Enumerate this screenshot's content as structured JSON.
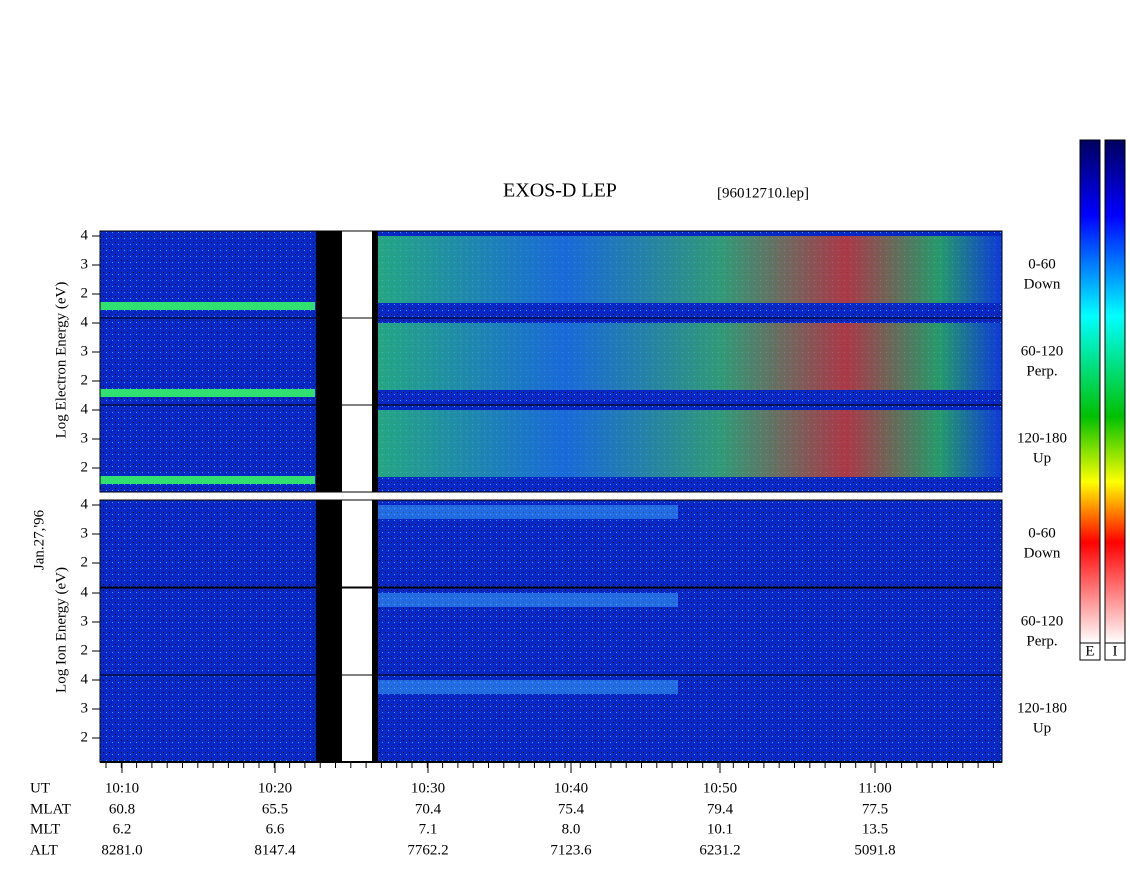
{
  "title": "EXOS-D LEP",
  "file": "[96012710.lep]",
  "date": "Jan.27,'96",
  "electron_ylabel": "Log  Electron  Energy (eV)",
  "ion_ylabel": "Log  Ion  Energy (eV)",
  "yticks": [
    "4",
    "3",
    "2"
  ],
  "electron_panels": [
    [
      "0-60",
      "Down"
    ],
    [
      "60-120",
      "Perp."
    ],
    [
      "120-180",
      "Up"
    ]
  ],
  "ion_panels": [
    [
      "0-60",
      "Down"
    ],
    [
      "60-120",
      "Perp."
    ],
    [
      "120-180",
      "Up"
    ]
  ],
  "ephemeris": {
    "labels": [
      "UT",
      "MLAT",
      "MLT",
      "ALT"
    ],
    "rows": [
      [
        "10:10",
        "10:20",
        "10:30",
        "10:40",
        "10:50",
        "11:00"
      ],
      [
        "60.8",
        "65.5",
        "70.4",
        "75.4",
        "79.4",
        "77.5"
      ],
      [
        "6.2",
        "6.6",
        "7.1",
        "8.0",
        "10.1",
        "13.5"
      ],
      [
        "8281.0",
        "8147.4",
        "7762.2",
        "7123.6",
        "6231.2",
        "5091.8"
      ]
    ]
  },
  "colorbar_labels": [
    "E",
    "I"
  ]
}
